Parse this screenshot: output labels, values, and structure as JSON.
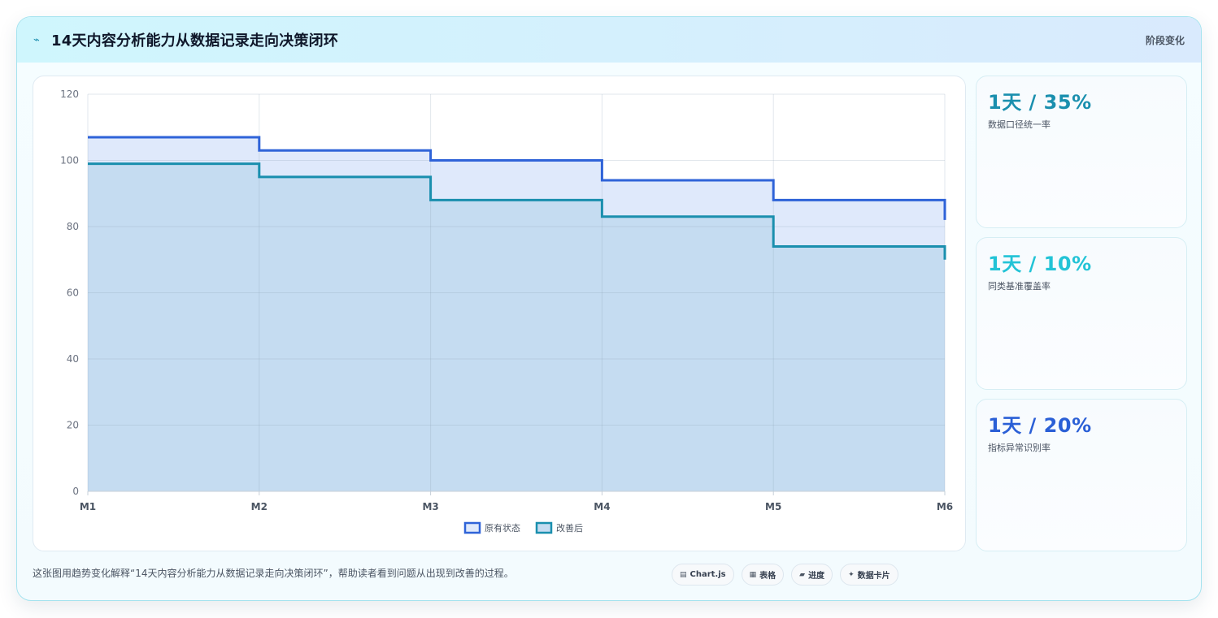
{
  "header": {
    "title": "14天内容分析能力从数据记录走向决策闭环",
    "stage_label": "阶段变化",
    "spark_icon": "sparkline-icon"
  },
  "chart_data": {
    "type": "area",
    "step": true,
    "categories": [
      "M1",
      "M2",
      "M3",
      "M4",
      "M5",
      "M6"
    ],
    "series": [
      {
        "name": "原有状态",
        "values": [
          107,
          103,
          100,
          94,
          88,
          82
        ],
        "color": "#2f63d8",
        "fill": "#dfe9fb"
      },
      {
        "name": "改善后",
        "values": [
          99,
          95,
          88,
          83,
          74,
          70
        ],
        "color": "#1a8fae",
        "fill": "#c5dcf1"
      }
    ],
    "ylim": [
      0,
      120
    ],
    "yticks": [
      0,
      20,
      40,
      60,
      80,
      100,
      120
    ],
    "grid": true,
    "legend": "bottom"
  },
  "kpis": [
    {
      "value": "1天 / 35%",
      "label": "数据口径统一率",
      "color": "#1a8fae"
    },
    {
      "value": "1天 / 10%",
      "label": "同类基准覆盖率",
      "color": "#22c3d6"
    },
    {
      "value": "1天 / 20%",
      "label": "指标异常识别率",
      "color": "#2a5fd6"
    }
  ],
  "footer": {
    "description": "这张图用趋势变化解释“14天内容分析能力从数据记录走向决策闭环”，帮助读者看到问题从出现到改善的过程。",
    "chips": [
      {
        "icon": "▤",
        "icon_name": "chart-icon",
        "label": "Chart.js"
      },
      {
        "icon": "▦",
        "icon_name": "table-icon",
        "label": "表格"
      },
      {
        "icon": "▰",
        "icon_name": "progress-icon",
        "label": "进度"
      },
      {
        "icon": "✦",
        "icon_name": "card-icon",
        "label": "数据卡片"
      }
    ]
  }
}
